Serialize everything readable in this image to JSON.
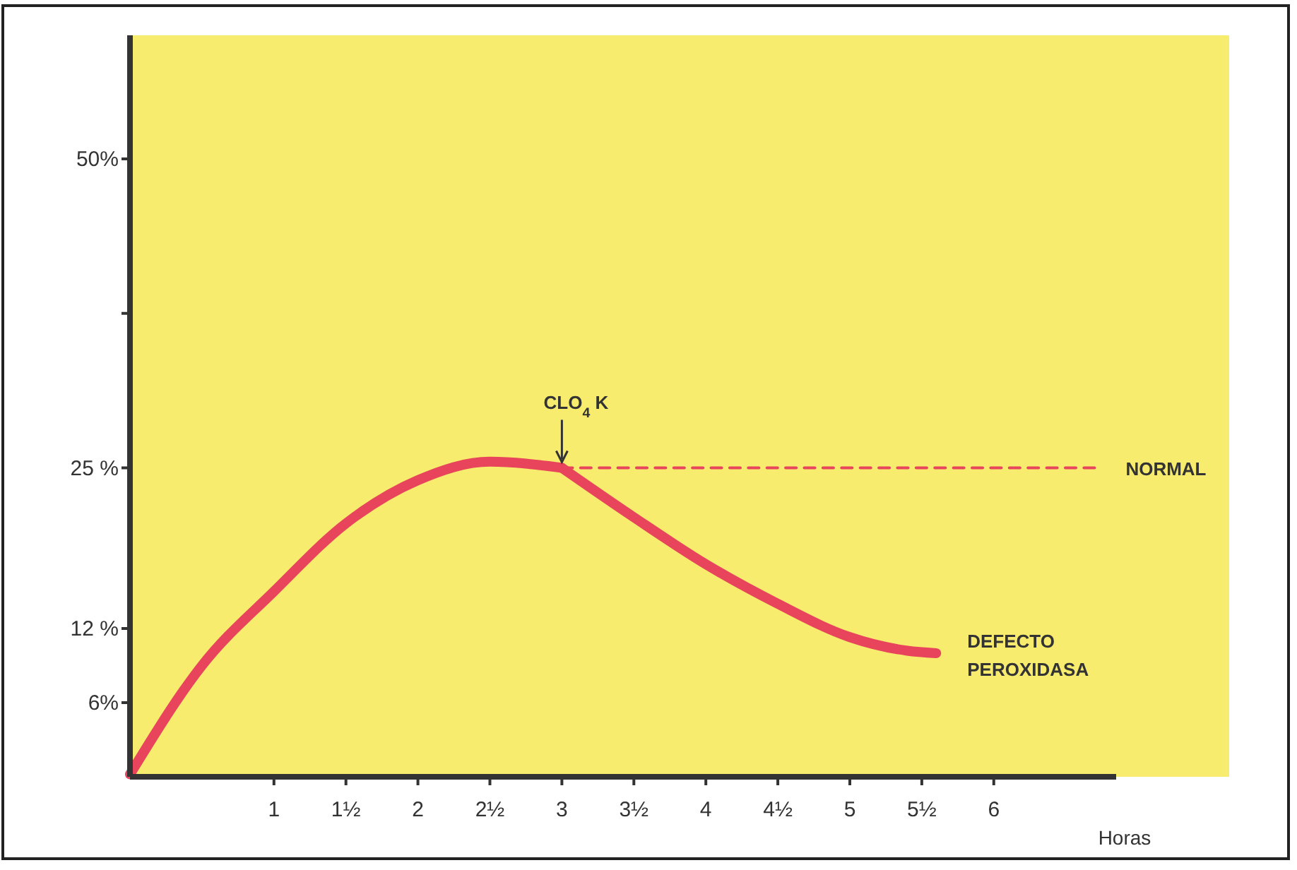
{
  "chart_data": {
    "type": "line",
    "xlabel": "Horas",
    "xlim": [
      0,
      6.85
    ],
    "ylim": [
      0,
      60
    ],
    "xticks": [
      {
        "value": 1,
        "label": "1"
      },
      {
        "value": 1.5,
        "label": "1½"
      },
      {
        "value": 2,
        "label": "2"
      },
      {
        "value": 2.5,
        "label": "2½"
      },
      {
        "value": 3,
        "label": "3"
      },
      {
        "value": 3.5,
        "label": "3½"
      },
      {
        "value": 4,
        "label": "4"
      },
      {
        "value": 4.5,
        "label": "4½"
      },
      {
        "value": 5,
        "label": "5"
      },
      {
        "value": 5.5,
        "label": "5½"
      },
      {
        "value": 6,
        "label": "6"
      }
    ],
    "yticks": [
      {
        "value": 6,
        "label": "6%"
      },
      {
        "value": 12,
        "label": "12 %"
      },
      {
        "value": 25,
        "label": "25 %"
      },
      {
        "value": 37.5,
        "label": null
      },
      {
        "value": 50,
        "label": "50%"
      }
    ],
    "grid": false,
    "marker": "none",
    "series": [
      {
        "color": "#e8445c",
        "line_style": "solid",
        "x": [
          0,
          0.5,
          1,
          1.5,
          2,
          2.5,
          3
        ],
        "values": [
          0.2,
          9,
          15,
          20.5,
          24,
          25.5,
          25
        ]
      },
      {
        "name": "NORMAL",
        "color": "#e8445c",
        "line_style": "dashed",
        "x": [
          3,
          6.7
        ],
        "values": [
          25,
          25
        ]
      },
      {
        "name": "DEFECTO PEROXIDASA",
        "color": "#e8445c",
        "line_style": "solid",
        "x": [
          3,
          3.5,
          4,
          4.5,
          5,
          5.4,
          5.6
        ],
        "values": [
          25,
          21,
          17.2,
          14,
          11.3,
          10.2,
          10
        ]
      }
    ],
    "annotations": [
      {
        "text": "CLO$_{4}$ K",
        "x": 3,
        "y": 25
      }
    ]
  }
}
